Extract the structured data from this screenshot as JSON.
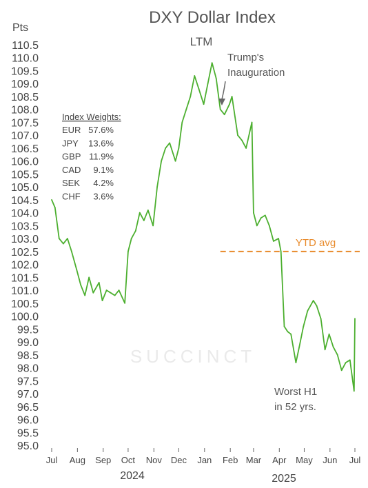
{
  "chart_data": {
    "type": "line",
    "title": "DXY Dollar Index",
    "subtitle": "LTM",
    "ylabel": "Pts",
    "ylim": [
      95.0,
      110.5
    ],
    "yticks": [
      "95.0",
      "95.5",
      "96.0",
      "96.5",
      "97.0",
      "97.5",
      "98.0",
      "98.5",
      "99.0",
      "99.5",
      "100.0",
      "100.5",
      "101.0",
      "101.5",
      "102.0",
      "102.5",
      "103.0",
      "103.5",
      "104.0",
      "104.5",
      "105.0",
      "105.5",
      "106.0",
      "106.5",
      "107.0",
      "107.5",
      "108.0",
      "108.5",
      "109.0",
      "109.5",
      "110.0",
      "110.5"
    ],
    "xticks": [
      "Jul",
      "Aug",
      "Sep",
      "Oct",
      "Nov",
      "Dec",
      "Jan",
      "Feb",
      "Mar",
      "Apr",
      "May",
      "Jun",
      "Jul"
    ],
    "years": [
      "2024",
      "2025"
    ],
    "grid": false,
    "series": [
      {
        "color": "#4caf2f",
        "x": [
          "2024-07-01",
          "2024-07-05",
          "2024-07-10",
          "2024-07-15",
          "2024-07-20",
          "2024-07-25",
          "2024-07-31",
          "2024-08-05",
          "2024-08-10",
          "2024-08-15",
          "2024-08-20",
          "2024-08-27",
          "2024-08-31",
          "2024-09-05",
          "2024-09-10",
          "2024-09-15",
          "2024-09-20",
          "2024-09-27",
          "2024-10-01",
          "2024-10-05",
          "2024-10-10",
          "2024-10-15",
          "2024-10-20",
          "2024-10-25",
          "2024-10-31",
          "2024-11-05",
          "2024-11-10",
          "2024-11-15",
          "2024-11-20",
          "2024-11-27",
          "2024-12-01",
          "2024-12-05",
          "2024-12-10",
          "2024-12-15",
          "2024-12-20",
          "2024-12-25",
          "2024-12-31",
          "2025-01-05",
          "2025-01-10",
          "2025-01-15",
          "2025-01-20",
          "2025-01-25",
          "2025-01-31",
          "2025-02-03",
          "2025-02-10",
          "2025-02-15",
          "2025-02-20",
          "2025-02-27",
          "2025-03-01",
          "2025-03-05",
          "2025-03-10",
          "2025-03-15",
          "2025-03-20",
          "2025-03-25",
          "2025-03-31",
          "2025-04-03",
          "2025-04-07",
          "2025-04-11",
          "2025-04-15",
          "2025-04-21",
          "2025-04-25",
          "2025-04-30",
          "2025-05-05",
          "2025-05-12",
          "2025-05-16",
          "2025-05-21",
          "2025-05-26",
          "2025-05-31",
          "2025-06-05",
          "2025-06-10",
          "2025-06-15",
          "2025-06-20",
          "2025-06-25",
          "2025-06-30",
          "2025-07-01"
        ],
        "values": [
          104.5,
          104.2,
          103.0,
          102.8,
          103.0,
          102.5,
          101.8,
          101.2,
          100.8,
          101.5,
          100.9,
          101.3,
          100.6,
          101.0,
          100.9,
          100.8,
          101.0,
          100.5,
          102.5,
          103.0,
          103.3,
          104.0,
          103.7,
          104.1,
          103.5,
          105.0,
          106.0,
          106.5,
          106.7,
          106.0,
          106.5,
          107.5,
          108.0,
          108.5,
          109.3,
          108.8,
          108.2,
          109.0,
          109.8,
          109.2,
          108.0,
          107.8,
          108.2,
          108.5,
          107.0,
          106.8,
          106.5,
          107.5,
          104.0,
          103.5,
          103.8,
          103.9,
          103.5,
          102.9,
          103.0,
          102.5,
          99.6,
          99.4,
          99.3,
          98.2,
          98.8,
          99.6,
          100.2,
          100.6,
          100.4,
          99.9,
          98.7,
          99.3,
          98.8,
          98.5,
          97.9,
          98.2,
          98.3,
          97.1,
          99.9
        ]
      }
    ],
    "reference_lines": [
      {
        "label": "YTD avg",
        "y": 102.5,
        "color": "#e88a2a",
        "from": "2025-01-20",
        "to": "2025-07-01"
      }
    ],
    "annotations": {
      "inauguration": [
        "Trump's",
        "Inauguration"
      ],
      "worst": [
        "Worst H1",
        "in 52 yrs."
      ]
    },
    "weights": {
      "heading": "Index Weights:",
      "items": [
        {
          "currency": "EUR",
          "pct": "57.6%"
        },
        {
          "currency": "JPY",
          "pct": "13.6%"
        },
        {
          "currency": "GBP",
          "pct": "11.9%"
        },
        {
          "currency": "CAD",
          "pct": "9.1%"
        },
        {
          "currency": "SEK",
          "pct": "4.2%"
        },
        {
          "currency": "CHF",
          "pct": "3.6%"
        }
      ]
    },
    "watermark": "SUCCINCT"
  }
}
